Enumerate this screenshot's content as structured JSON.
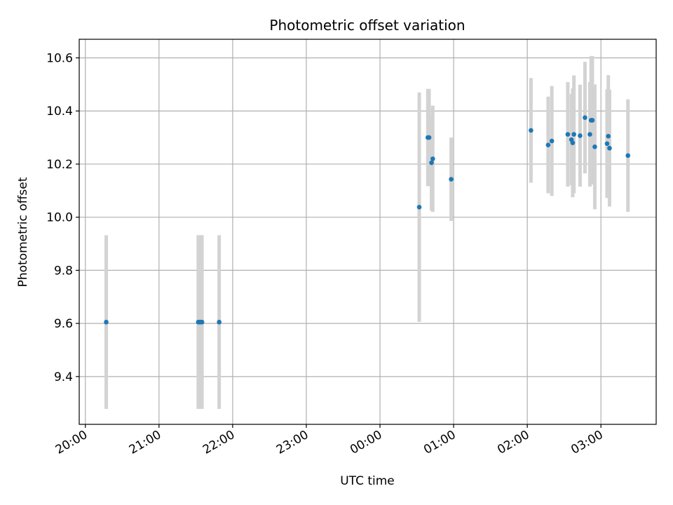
{
  "chart_data": {
    "type": "scatter",
    "title": "Photometric offset variation",
    "xlabel": "UTC time",
    "ylabel": "Photometric offset",
    "grid": true,
    "legend": "none",
    "x_ticks": [
      "20:00",
      "21:00",
      "22:00",
      "23:00",
      "00:00",
      "01:00",
      "02:00",
      "03:00"
    ],
    "y_ticks": [
      9.4,
      9.6,
      9.8,
      10.0,
      10.2,
      10.4,
      10.6
    ],
    "y_tick_labels": [
      "9.4",
      "9.6",
      "9.8",
      "10.0",
      "10.2",
      "10.4",
      "10.6"
    ],
    "xlim": [
      "19:55",
      "03:45"
    ],
    "ylim": [
      9.22,
      10.67
    ],
    "colors": {
      "point": "#1f77b4",
      "errorbar": "#d3d3d3",
      "grid": "#b0b0b0"
    },
    "points": [
      {
        "time": "20:17",
        "value": 9.605,
        "err": 0.327
      },
      {
        "time": "21:32",
        "value": 9.605,
        "err": 0.327
      },
      {
        "time": "21:33",
        "value": 9.605,
        "err": 0.327
      },
      {
        "time": "21:34",
        "value": 9.605,
        "err": 0.327
      },
      {
        "time": "21:35",
        "value": 9.605,
        "err": 0.327
      },
      {
        "time": "21:49",
        "value": 9.605,
        "err": 0.327
      },
      {
        "time": "00:32",
        "value": 10.038,
        "err": 0.432
      },
      {
        "time": "00:39",
        "value": 10.3,
        "err": 0.183
      },
      {
        "time": "00:40",
        "value": 10.3,
        "err": 0.183
      },
      {
        "time": "00:42",
        "value": 10.205,
        "err": 0.18
      },
      {
        "time": "00:43",
        "value": 10.22,
        "err": 0.2
      },
      {
        "time": "00:58",
        "value": 10.143,
        "err": 0.157
      },
      {
        "time": "02:03",
        "value": 10.327,
        "err": 0.197
      },
      {
        "time": "02:17",
        "value": 10.272,
        "err": 0.182
      },
      {
        "time": "02:20",
        "value": 10.287,
        "err": 0.207
      },
      {
        "time": "02:33",
        "value": 10.312,
        "err": 0.197
      },
      {
        "time": "02:36",
        "value": 10.292,
        "err": 0.172
      },
      {
        "time": "02:37",
        "value": 10.28,
        "err": 0.205
      },
      {
        "time": "02:38",
        "value": 10.312,
        "err": 0.222
      },
      {
        "time": "02:43",
        "value": 10.307,
        "err": 0.192
      },
      {
        "time": "02:47",
        "value": 10.375,
        "err": 0.21
      },
      {
        "time": "02:51",
        "value": 10.312,
        "err": 0.197
      },
      {
        "time": "02:52",
        "value": 10.365,
        "err": 0.242
      },
      {
        "time": "02:53",
        "value": 10.365,
        "err": 0.242
      },
      {
        "time": "02:55",
        "value": 10.265,
        "err": 0.235
      },
      {
        "time": "03:05",
        "value": 10.277,
        "err": 0.205
      },
      {
        "time": "03:06",
        "value": 10.305,
        "err": 0.23
      },
      {
        "time": "03:07",
        "value": 10.26,
        "err": 0.22
      },
      {
        "time": "03:22",
        "value": 10.232,
        "err": 0.212
      }
    ]
  }
}
